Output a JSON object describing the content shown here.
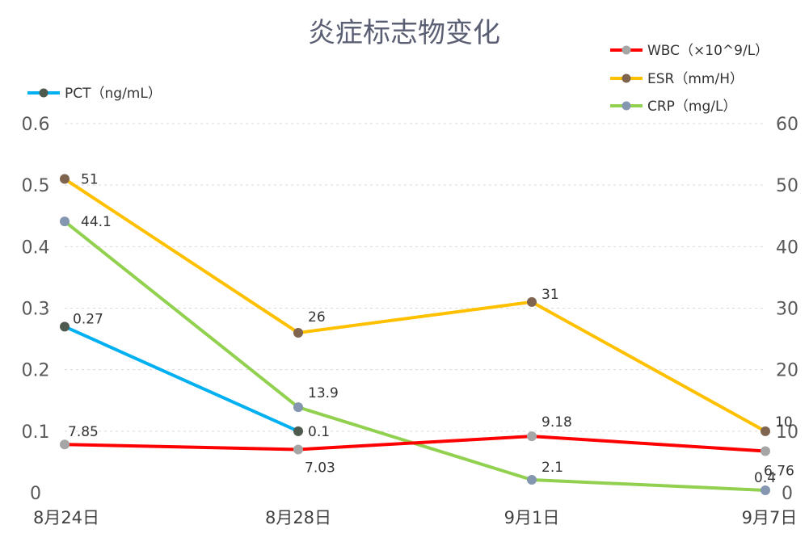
{
  "chart_data": {
    "type": "line",
    "title": "炎症标志物变化",
    "categories": [
      "8月24日",
      "8月28日",
      "9月1日",
      "9月7日"
    ],
    "y_left": {
      "ticks": [
        "0",
        "0.1",
        "0.2",
        "0.3",
        "0.4",
        "0.5",
        "0.6"
      ],
      "range": [
        0,
        0.6
      ]
    },
    "y_right": {
      "ticks": [
        "0",
        "10",
        "20",
        "30",
        "40",
        "50",
        "60"
      ],
      "range": [
        0,
        60
      ]
    },
    "grid": true,
    "legend_position_left": "top-left",
    "legend_position_right": "top-right",
    "series": [
      {
        "name": "WBC（×10^9/L）",
        "axis": "right",
        "color": "#ff0000",
        "marker_color": "#a6a6a6",
        "values": [
          7.85,
          7.03,
          9.18,
          6.76
        ],
        "labels": [
          "7.85",
          "7.03",
          "9.18",
          "6.76"
        ]
      },
      {
        "name": "ESR（mm/H）",
        "axis": "right",
        "color": "#ffc000",
        "marker_color": "#7f6450",
        "values": [
          51,
          26,
          31,
          10
        ],
        "labels": [
          "51",
          "26",
          "31",
          "10"
        ]
      },
      {
        "name": "CRP（mg/L）",
        "axis": "right",
        "color": "#92d050",
        "marker_color": "#8496b0",
        "values": [
          44.1,
          13.9,
          2.1,
          0.4
        ],
        "labels": [
          "44.1",
          "13.9",
          "2.1",
          "0.4"
        ]
      },
      {
        "name": "PCT（ng/mL）",
        "axis": "left",
        "color": "#00b0f0",
        "marker_color": "#4d5a4d",
        "values": [
          0.27,
          0.1,
          null,
          null
        ],
        "labels": [
          "0.27",
          "0.1",
          "",
          ""
        ]
      }
    ]
  }
}
